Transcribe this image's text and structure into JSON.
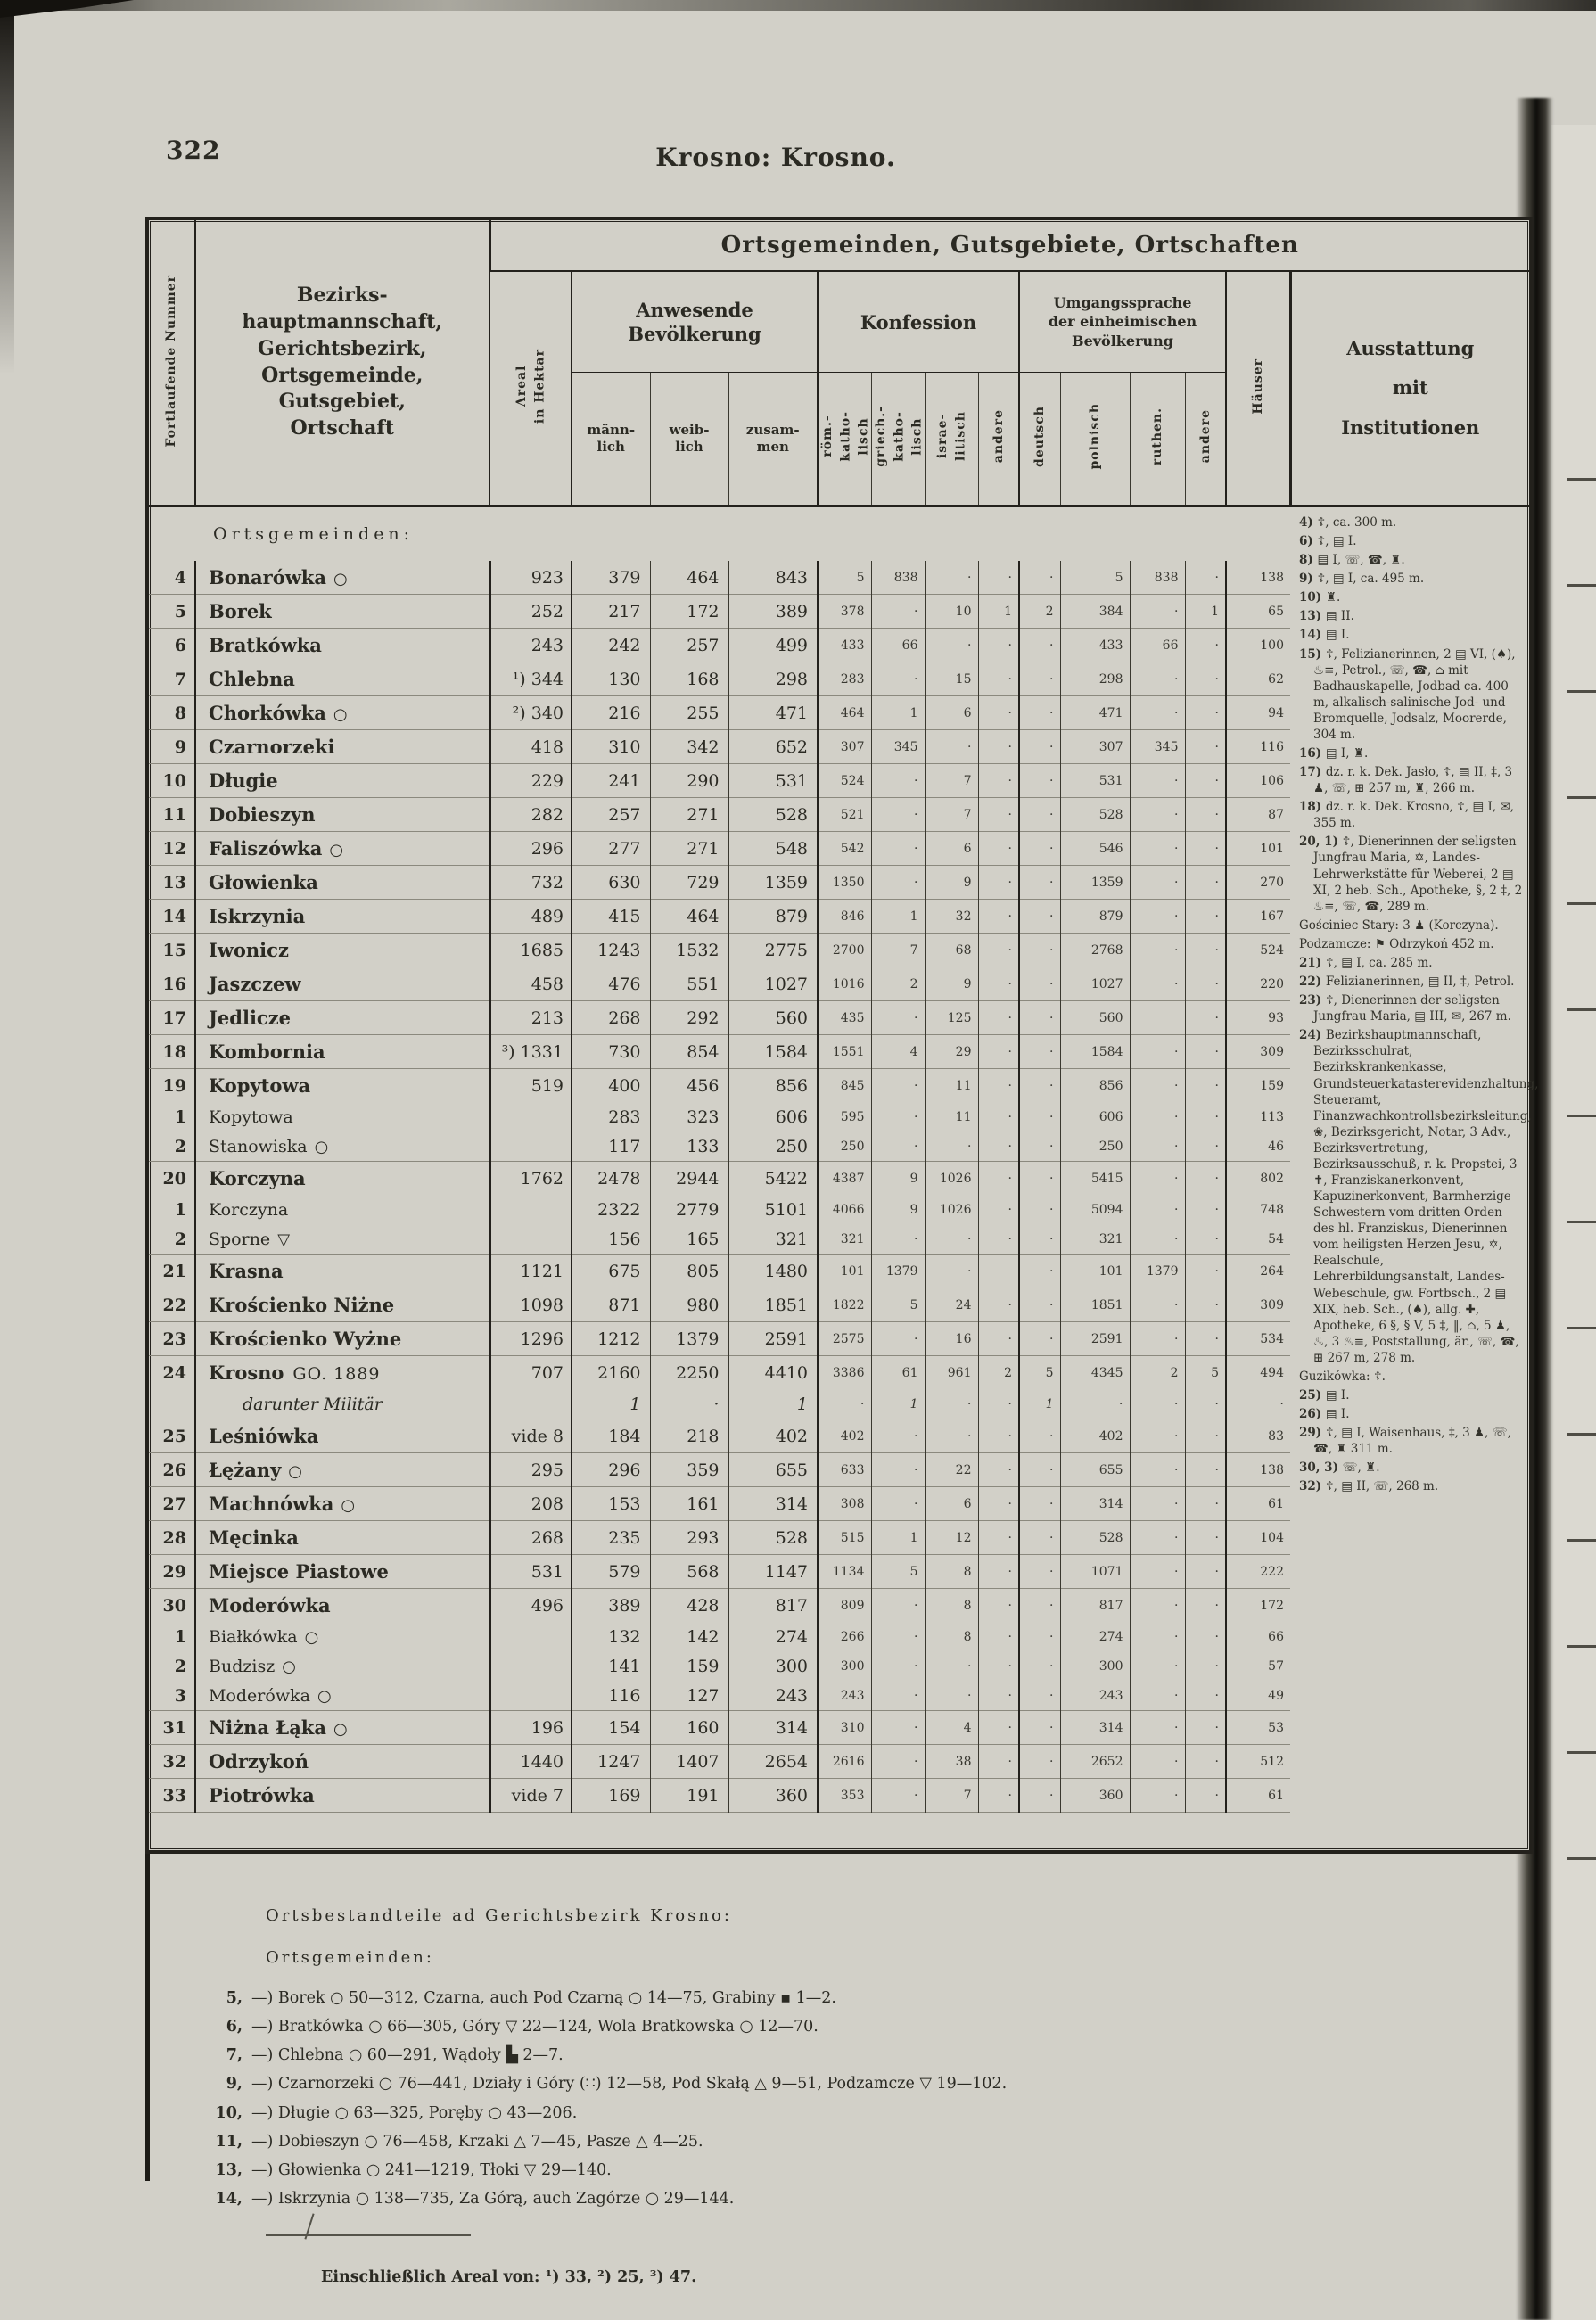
{
  "page": {
    "number": "322",
    "running_title": "Krosno: Krosno."
  },
  "table": {
    "header": {
      "nr_label": "Fortlaufende Nummer",
      "main_label": "Bezirks-\nhauptmannschaft,\nGerichtsbezirk,\nOrtsgemeinde,\nGutsgebiet,\nOrtschaft",
      "band_title": "Ortsgemeinden, Gutsgebiete, Ortschaften",
      "areal_label": "Areal\nin Hektar",
      "pop_title": "Anwesende\nBevölkerung",
      "pop_cols": [
        "männ-\nlich",
        "weib-\nlich",
        "zusam-\nmen"
      ],
      "konfession_title": "Konfession",
      "konfession_cols": [
        "röm.-\nkatho-\nlisch",
        "griech.-\nkatho-\nlisch",
        "israe-\nlitisch",
        "andere"
      ],
      "sprache_title": "Umgangssprache\nder einheimischen\nBevölkerung",
      "sprache_cols": [
        "deutsch",
        "polnisch",
        "ruthen.",
        "andere"
      ],
      "haeuser_label": "Häuser",
      "ausstattung_label": "Ausstattung\nmit\nInstitutionen"
    },
    "section_label": "Ortsgemeinden:",
    "rows": [
      {
        "n": "4",
        "nm": "Bonarówka",
        "mk": "○",
        "ar": "923",
        "m": "379",
        "w": "464",
        "z": "843",
        "rk": "5",
        "gk": "838",
        "isr": "·",
        "ka": "·",
        "de": "·",
        "pl": "5",
        "ru": "838",
        "sa": "·",
        "h": "138"
      },
      {
        "n": "5",
        "nm": "Borek",
        "ar": "252",
        "m": "217",
        "w": "172",
        "z": "389",
        "rk": "378",
        "gk": "·",
        "isr": "10",
        "ka": "1",
        "de": "2",
        "pl": "384",
        "ru": "·",
        "sa": "1",
        "h": "65"
      },
      {
        "n": "6",
        "nm": "Bratkówka",
        "ar": "243",
        "m": "242",
        "w": "257",
        "z": "499",
        "rk": "433",
        "gk": "66",
        "isr": "·",
        "ka": "·",
        "de": "·",
        "pl": "433",
        "ru": "66",
        "sa": "·",
        "h": "100"
      },
      {
        "n": "7",
        "nm": "Chlebna",
        "ar": "¹) 344",
        "m": "130",
        "w": "168",
        "z": "298",
        "rk": "283",
        "gk": "·",
        "isr": "15",
        "ka": "·",
        "de": "·",
        "pl": "298",
        "ru": "·",
        "sa": "·",
        "h": "62"
      },
      {
        "n": "8",
        "nm": "Chorkówka",
        "mk": "○",
        "ar": "²) 340",
        "m": "216",
        "w": "255",
        "z": "471",
        "rk": "464",
        "gk": "1",
        "isr": "6",
        "ka": "·",
        "de": "·",
        "pl": "471",
        "ru": "·",
        "sa": "·",
        "h": "94"
      },
      {
        "n": "9",
        "nm": "Czarnorzeki",
        "ar": "418",
        "m": "310",
        "w": "342",
        "z": "652",
        "rk": "307",
        "gk": "345",
        "isr": "·",
        "ka": "·",
        "de": "·",
        "pl": "307",
        "ru": "345",
        "sa": "·",
        "h": "116"
      },
      {
        "n": "10",
        "nm": "Długie",
        "ar": "229",
        "m": "241",
        "w": "290",
        "z": "531",
        "rk": "524",
        "gk": "·",
        "isr": "7",
        "ka": "·",
        "de": "·",
        "pl": "531",
        "ru": "·",
        "sa": "·",
        "h": "106"
      },
      {
        "n": "11",
        "nm": "Dobieszyn",
        "ar": "282",
        "m": "257",
        "w": "271",
        "z": "528",
        "rk": "521",
        "gk": "·",
        "isr": "7",
        "ka": "·",
        "de": "·",
        "pl": "528",
        "ru": "·",
        "sa": "·",
        "h": "87"
      },
      {
        "n": "12",
        "nm": "Faliszówka",
        "mk": "○",
        "ar": "296",
        "m": "277",
        "w": "271",
        "z": "548",
        "rk": "542",
        "gk": "·",
        "isr": "6",
        "ka": "·",
        "de": "·",
        "pl": "546",
        "ru": "·",
        "sa": "·",
        "h": "101"
      },
      {
        "n": "13",
        "nm": "Głowienka",
        "ar": "732",
        "m": "630",
        "w": "729",
        "z": "1359",
        "rk": "1350",
        "gk": "·",
        "isr": "9",
        "ka": "·",
        "de": "·",
        "pl": "1359",
        "ru": "·",
        "sa": "·",
        "h": "270"
      },
      {
        "n": "14",
        "nm": "Iskrzynia",
        "ar": "489",
        "m": "415",
        "w": "464",
        "z": "879",
        "rk": "846",
        "gk": "1",
        "isr": "32",
        "ka": "·",
        "de": "·",
        "pl": "879",
        "ru": "·",
        "sa": "·",
        "h": "167"
      },
      {
        "n": "15",
        "nm": "Iwonicz",
        "ar": "1685",
        "m": "1243",
        "w": "1532",
        "z": "2775",
        "rk": "2700",
        "gk": "7",
        "isr": "68",
        "ka": "·",
        "de": "·",
        "pl": "2768",
        "ru": "·",
        "sa": "·",
        "h": "524"
      },
      {
        "n": "16",
        "nm": "Jaszczew",
        "ar": "458",
        "m": "476",
        "w": "551",
        "z": "1027",
        "rk": "1016",
        "gk": "2",
        "isr": "9",
        "ka": "·",
        "de": "·",
        "pl": "1027",
        "ru": "·",
        "sa": "·",
        "h": "220"
      },
      {
        "n": "17",
        "nm": "Jedlicze",
        "ar": "213",
        "m": "268",
        "w": "292",
        "z": "560",
        "rk": "435",
        "gk": "·",
        "isr": "125",
        "ka": "·",
        "de": "·",
        "pl": "560",
        "ru": "",
        "sa": "·",
        "h": "93"
      },
      {
        "n": "18",
        "nm": "Kombornia",
        "ar": "³) 1331",
        "m": "730",
        "w": "854",
        "z": "1584",
        "rk": "1551",
        "gk": "4",
        "isr": "29",
        "ka": "·",
        "de": "·",
        "pl": "1584",
        "ru": "·",
        "sa": "·",
        "h": "309"
      },
      {
        "n": "19",
        "nm": "Kopytowa",
        "ar": "519",
        "m": "400",
        "w": "456",
        "z": "856",
        "rk": "845",
        "gk": "·",
        "isr": "11",
        "ka": "·",
        "de": "·",
        "pl": "856",
        "ru": "·",
        "sa": "·",
        "h": "159"
      },
      {
        "n": "1",
        "nm": "Kopytowa",
        "sub": true,
        "ar": "",
        "m": "283",
        "w": "323",
        "z": "606",
        "rk": "595",
        "gk": "·",
        "isr": "11",
        "ka": "·",
        "de": "·",
        "pl": "606",
        "ru": "·",
        "sa": "·",
        "h": "113"
      },
      {
        "n": "2",
        "nm": "Stanowiska",
        "mk": "○",
        "sub": true,
        "ar": "",
        "m": "117",
        "w": "133",
        "z": "250",
        "rk": "250",
        "gk": "·",
        "isr": "·",
        "ka": "·",
        "de": "·",
        "pl": "250",
        "ru": "·",
        "sa": "·",
        "h": "46"
      },
      {
        "n": "20",
        "nm": "Korczyna",
        "ar": "1762",
        "m": "2478",
        "w": "2944",
        "z": "5422",
        "rk": "4387",
        "gk": "9",
        "isr": "1026",
        "ka": "·",
        "de": "·",
        "pl": "5415",
        "ru": "·",
        "sa": "·",
        "h": "802"
      },
      {
        "n": "1",
        "nm": "Korczyna",
        "sub": true,
        "ar": "",
        "m": "2322",
        "w": "2779",
        "z": "5101",
        "rk": "4066",
        "gk": "9",
        "isr": "1026",
        "ka": "·",
        "de": "·",
        "pl": "5094",
        "ru": "·",
        "sa": "·",
        "h": "748"
      },
      {
        "n": "2",
        "nm": "Sporne",
        "mk": "▽",
        "sub": true,
        "ar": "",
        "m": "156",
        "w": "165",
        "z": "321",
        "rk": "321",
        "gk": "·",
        "isr": "·",
        "ka": "·",
        "de": "·",
        "pl": "321",
        "ru": "·",
        "sa": "·",
        "h": "54"
      },
      {
        "n": "21",
        "nm": "Krasna",
        "ar": "1121",
        "m": "675",
        "w": "805",
        "z": "1480",
        "rk": "101",
        "gk": "1379",
        "isr": "·",
        "ka": "",
        "de": "·",
        "pl": "101",
        "ru": "1379",
        "sa": "·",
        "h": "264"
      },
      {
        "n": "22",
        "nm": "Krościenko Niżne",
        "ar": "1098",
        "m": "871",
        "w": "980",
        "z": "1851",
        "rk": "1822",
        "gk": "5",
        "isr": "24",
        "ka": "·",
        "de": "·",
        "pl": "1851",
        "ru": "·",
        "sa": "·",
        "h": "309"
      },
      {
        "n": "23",
        "nm": "Krościenko Wyżne",
        "ar": "1296",
        "m": "1212",
        "w": "1379",
        "z": "2591",
        "rk": "2575",
        "gk": "·",
        "isr": "16",
        "ka": "·",
        "de": "·",
        "pl": "2591",
        "ru": "·",
        "sa": "·",
        "h": "534"
      },
      {
        "n": "24",
        "nm": "Krosno",
        "sfx": "GO. 1889",
        "ar": "707",
        "m": "2160",
        "w": "2250",
        "z": "4410",
        "rk": "3386",
        "gk": "61",
        "isr": "961",
        "ka": "2",
        "de": "5",
        "pl": "4345",
        "ru": "2",
        "sa": "5",
        "h": "494"
      },
      {
        "n": "",
        "nm": "darunter Militär",
        "sub": true,
        "it": true,
        "ar": "",
        "m": "1",
        "w": "·",
        "z": "1",
        "rk": "·",
        "gk": "1",
        "isr": "·",
        "ka": "·",
        "de": "1",
        "pl": "·",
        "ru": "·",
        "sa": "·",
        "h": "·"
      },
      {
        "n": "25",
        "nm": "Leśniówka",
        "ar": "vide 8",
        "m": "184",
        "w": "218",
        "z": "402",
        "rk": "402",
        "gk": "·",
        "isr": "·",
        "ka": "·",
        "de": "·",
        "pl": "402",
        "ru": "·",
        "sa": "·",
        "h": "83"
      },
      {
        "n": "26",
        "nm": "Łężany",
        "mk": "○",
        "ar": "295",
        "m": "296",
        "w": "359",
        "z": "655",
        "rk": "633",
        "gk": "·",
        "isr": "22",
        "ka": "·",
        "de": "·",
        "pl": "655",
        "ru": "·",
        "sa": "·",
        "h": "138"
      },
      {
        "n": "27",
        "nm": "Machnówka",
        "mk": "○",
        "ar": "208",
        "m": "153",
        "w": "161",
        "z": "314",
        "rk": "308",
        "gk": "·",
        "isr": "6",
        "ka": "·",
        "de": "·",
        "pl": "314",
        "ru": "·",
        "sa": "·",
        "h": "61"
      },
      {
        "n": "28",
        "nm": "Męcinka",
        "ar": "268",
        "m": "235",
        "w": "293",
        "z": "528",
        "rk": "515",
        "gk": "1",
        "isr": "12",
        "ka": "·",
        "de": "·",
        "pl": "528",
        "ru": "·",
        "sa": "·",
        "h": "104"
      },
      {
        "n": "29",
        "nm": "Miejsce Piastowe",
        "ar": "531",
        "m": "579",
        "w": "568",
        "z": "1147",
        "rk": "1134",
        "gk": "5",
        "isr": "8",
        "ka": "·",
        "de": "·",
        "pl": "1071",
        "ru": "·",
        "sa": "·",
        "h": "222"
      },
      {
        "n": "30",
        "nm": "Moderówka",
        "ar": "496",
        "m": "389",
        "w": "428",
        "z": "817",
        "rk": "809",
        "gk": "·",
        "isr": "8",
        "ka": "·",
        "de": "·",
        "pl": "817",
        "ru": "·",
        "sa": "·",
        "h": "172"
      },
      {
        "n": "1",
        "nm": "Białkówka",
        "mk": "○",
        "sub": true,
        "ar": "",
        "m": "132",
        "w": "142",
        "z": "274",
        "rk": "266",
        "gk": "·",
        "isr": "8",
        "ka": "·",
        "de": "·",
        "pl": "274",
        "ru": "·",
        "sa": "·",
        "h": "66"
      },
      {
        "n": "2",
        "nm": "Budzisz",
        "mk": "○",
        "sub": true,
        "ar": "",
        "m": "141",
        "w": "159",
        "z": "300",
        "rk": "300",
        "gk": "·",
        "isr": "·",
        "ka": "·",
        "de": "·",
        "pl": "300",
        "ru": "·",
        "sa": "·",
        "h": "57"
      },
      {
        "n": "3",
        "nm": "Moderówka",
        "mk": "○",
        "sub": true,
        "ar": "",
        "m": "116",
        "w": "127",
        "z": "243",
        "rk": "243",
        "gk": "·",
        "isr": "·",
        "ka": "·",
        "de": "·",
        "pl": "243",
        "ru": "·",
        "sa": "·",
        "h": "49"
      },
      {
        "n": "31",
        "nm": "Niżna Łąka",
        "mk": "○",
        "ar": "196",
        "m": "154",
        "w": "160",
        "z": "314",
        "rk": "310",
        "gk": "·",
        "isr": "4",
        "ka": "·",
        "de": "·",
        "pl": "314",
        "ru": "·",
        "sa": "·",
        "h": "53"
      },
      {
        "n": "32",
        "nm": "Odrzykoń",
        "ar": "1440",
        "m": "1247",
        "w": "1407",
        "z": "2654",
        "rk": "2616",
        "gk": "·",
        "isr": "38",
        "ka": "·",
        "de": "·",
        "pl": "2652",
        "ru": "·",
        "sa": "·",
        "h": "512"
      },
      {
        "n": "33",
        "nm": "Piotrówka",
        "ar": "vide 7",
        "m": "169",
        "w": "191",
        "z": "360",
        "rk": "353",
        "gk": "·",
        "isr": "7",
        "ka": "·",
        "de": "·",
        "pl": "360",
        "ru": "·",
        "sa": "·",
        "h": "61"
      }
    ],
    "notes": [
      {
        "k": "4)",
        "t": "☦, ca. 300 m."
      },
      {
        "k": "6)",
        "t": "☦, ▤ I."
      },
      {
        "k": "8)",
        "t": "▤ I, ☏, ☎, ♜."
      },
      {
        "k": "9)",
        "t": "☦, ▤ I, ca. 495 m."
      },
      {
        "k": "10)",
        "t": "♜."
      },
      {
        "k": "13)",
        "t": "▤ II."
      },
      {
        "k": "14)",
        "t": "▤ I."
      },
      {
        "k": "15)",
        "t": "☦, Felizianerinnen, 2 ▤ VI, (♠), ♨≡, Petrol., ☏, ☎, ⌂ mit Badhauskapelle, Jodbad ca. 400 m, alkalisch-salinische Jod- und Bromquelle, Jodsalz, Moorerde, 304 m."
      },
      {
        "k": "16)",
        "t": "▤ I, ♜."
      },
      {
        "k": "17)",
        "t": "dz. r. k. Dek. Jasło, ☦, ▤ II, ‡, 3 ♟, ☏, ⊞ 257 m, ♜, 266 m."
      },
      {
        "k": "18)",
        "t": "dz. r. k. Dek. Krosno, ☦, ▤ I, ✉, 355 m."
      },
      {
        "k": "20, 1)",
        "t": "☦, Dienerinnen der seligsten Jungfrau Maria, ✡, Landes-Lehrwerkstätte für Weberei, 2 ▤ XI, 2 heb. Sch., Apotheke, §, 2 ‡, 2 ♨≡, ☏, ☎, 289 m."
      },
      {
        "k": "",
        "t": "Gościniec Stary: 3 ♟ (Korczyna)."
      },
      {
        "k": "",
        "t": "Podzamcze: ⚑ Odrzykoń 452 m."
      },
      {
        "k": "21)",
        "t": "☦, ▤ I, ca. 285 m."
      },
      {
        "k": "22)",
        "t": "Felizianerinnen, ▤ II, ‡, Petrol."
      },
      {
        "k": "23)",
        "t": "☦, Dienerinnen der seligsten Jungfrau Maria, ▤ III, ✉, 267 m."
      },
      {
        "k": "24)",
        "t": "Bezirkshauptmannschaft, Bezirksschulrat, Bezirkskrankenkasse, Grundsteuerkatasterevidenzhaltung, Steueramt, Finanzwachkontrollsbezirksleitung, ❀, Bezirksgericht, Notar, 3 Adv., Bezirksvertretung, Bezirksausschuß, r. k. Propstei, 3 ✝, Franziskanerkonvent, Kapuzinerkonvent, Barmherzige Schwestern vom dritten Orden des hl. Franziskus, Dienerinnen vom heiligsten Herzen Jesu, ✡, Realschule, Lehrerbildungsanstalt, Landes-Webeschule, gw. Fortbsch., 2 ▤ XIX, heb. Sch., (♠), allg. ✚, Apotheke, 6 §, § V, 5 ‡, ‖, ⌂, 5 ♟, ♨, 3 ♨≡, Poststallung, är., ☏, ☎, ⊞ 267 m, 278 m."
      },
      {
        "k": "",
        "t": "Guzikówka: ☦."
      },
      {
        "k": "25)",
        "t": "▤ I."
      },
      {
        "k": "26)",
        "t": "▤ I."
      },
      {
        "k": "29)",
        "t": "☦, ▤ I, Waisenhaus, ‡, 3 ♟, ☏, ☎, ♜ 311 m."
      },
      {
        "k": "30, 3)",
        "t": "☏, ♜."
      },
      {
        "k": "32)",
        "t": "☦, ▤ II, ☏, 268 m."
      }
    ]
  },
  "footer": {
    "heading": "Ortsbestandteile ad Gerichtsbezirk Krosno:",
    "subheading": "Ortsgemeinden:",
    "lines": [
      {
        "k": "5,",
        "t": "—) Borek ○ 50—312, Czarna, auch Pod Czarną ○ 14—75, Grabiny ▪ 1—2."
      },
      {
        "k": "6,",
        "t": "—) Bratkówka ○ 66—305, Góry ▽ 22—124, Wola Bratkowska ○ 12—70."
      },
      {
        "k": "7,",
        "t": "—) Chlebna ○ 60—291, Wądoły ▙ 2—7."
      },
      {
        "k": "9,",
        "t": "—) Czarnorzeki ○ 76—441, Działy i Góry (∷) 12—58, Pod Skałą △ 9—51, Podzamcze ▽ 19—102."
      },
      {
        "k": "10,",
        "t": "—) Długie ○ 63—325, Poręby ○ 43—206."
      },
      {
        "k": "11,",
        "t": "—) Dobieszyn ○ 76—458, Krzaki △ 7—45, Pasze △ 4—25."
      },
      {
        "k": "13,",
        "t": "—) Głowienka ○ 241—1219, Tłoki ▽ 29—140."
      },
      {
        "k": "14,",
        "t": "—) Iskrzynia ○ 138—735, Za Górą, auch Zagórze ○ 29—144."
      }
    ],
    "final_note": "Einschließlich Areal von: ¹) 33, ²) 25, ³) 47."
  }
}
